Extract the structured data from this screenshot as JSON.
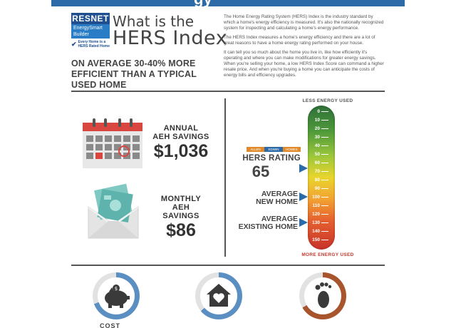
{
  "logo": {
    "name": "RESNET",
    "sub": "EnergySmart Builder",
    "tagline": "Every Home is a HERS Rated Home"
  },
  "title": {
    "line1": "What is the",
    "line2": "HERS Index"
  },
  "headline": "ON AVERAGE 30-40% MORE EFFICIENT THAN A TYPICAL USED HOME",
  "intro": {
    "p1": "The Home Energy Rating System (HERS) Index is the industry standard by which a home's energy efficiency is measured. It's also the nationally recognized system for inspecting and calculating a home's energy performance.",
    "p2": "The HERS Index measures a home's energy efficiency and there are a lot of great reasons to have a home energy rating performed on your house.",
    "p3": "It can tell you so much about the home you live in, like how efficiently it's operating and where you can make modifications for greater energy savings. When you're selling your home, a low HERS Index Score can command a higher resale price. And when you're buying a home you can anticipate the costs of energy bills and efficiency upgrades."
  },
  "annual": {
    "label1": "ANNUAL",
    "label2": "AEH SAVINGS",
    "amount": "$1,036"
  },
  "monthly": {
    "label1": "MONTHLY",
    "label2": "AEH SAVINGS",
    "amount": "$86"
  },
  "meter": {
    "top_label": "LESS ENERGY USED",
    "bottom_label": "MORE ENERGY USED",
    "ticks": [
      "0",
      "10",
      "20",
      "30",
      "40",
      "50",
      "60",
      "70",
      "80",
      "90",
      "100",
      "110",
      "120",
      "130",
      "140",
      "150"
    ],
    "hers_brand": [
      "ALLEN",
      "EDWIN",
      "HOMES"
    ],
    "hers_rating_label": "HERS RATING",
    "hers_rating_value": "65",
    "average_new_1": "AVERAGE",
    "average_new_2": "NEW HOME",
    "average_existing_1": "AVERAGE",
    "average_existing_2": "EXISTING HOME"
  },
  "colors": {
    "accent_blue": "#2d6aa8",
    "calendar_red": "#d9463f",
    "ring_blue": "#5b8fc2",
    "ring_brown": "#a8552e"
  },
  "bottom": {
    "cost_label": "COST"
  }
}
